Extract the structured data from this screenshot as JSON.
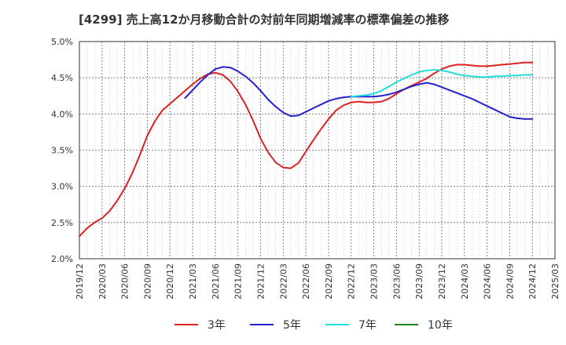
{
  "chart_data": {
    "type": "line",
    "title": "[4299]  売上高12か月移動合計の対前年同期増減率の標準偏差の推移",
    "xlabel": "",
    "ylabel": "",
    "ylim": [
      2.0,
      5.0
    ],
    "y_ticks": [
      "5.0%",
      "4.5%",
      "4.0%",
      "3.5%",
      "3.0%",
      "2.5%",
      "2.0%"
    ],
    "y_tick_values": [
      5.0,
      4.5,
      4.0,
      3.5,
      3.0,
      2.5,
      2.0
    ],
    "x_ticks": [
      "2019/12",
      "2020/03",
      "2020/06",
      "2020/09",
      "2020/12",
      "2021/03",
      "2021/06",
      "2021/09",
      "2021/12",
      "2022/03",
      "2022/06",
      "2022/09",
      "2022/12",
      "2023/03",
      "2023/06",
      "2023/09",
      "2023/12",
      "2024/03",
      "2024/06",
      "2024/09",
      "2024/12",
      "2025/03"
    ],
    "grid": true,
    "legend_position": "bottom",
    "series": [
      {
        "name": "3年",
        "color": "#dd2222",
        "x": [
          "2019/12",
          "2020/01",
          "2020/02",
          "2020/03",
          "2020/04",
          "2020/05",
          "2020/06",
          "2020/07",
          "2020/08",
          "2020/09",
          "2020/10",
          "2020/11",
          "2020/12",
          "2021/01",
          "2021/02",
          "2021/03",
          "2021/04",
          "2021/05",
          "2021/06",
          "2021/07",
          "2021/08",
          "2021/09",
          "2021/10",
          "2021/11",
          "2021/12",
          "2022/01",
          "2022/02",
          "2022/03",
          "2022/04",
          "2022/05",
          "2022/06",
          "2022/07",
          "2022/08",
          "2022/09",
          "2022/10",
          "2022/11",
          "2022/12",
          "2023/01",
          "2023/02",
          "2023/03",
          "2023/04",
          "2023/05",
          "2023/06",
          "2023/07",
          "2023/08",
          "2023/09",
          "2023/10",
          "2023/11",
          "2023/12",
          "2024/01",
          "2024/02",
          "2024/03",
          "2024/04",
          "2024/05",
          "2024/06",
          "2024/07",
          "2024/08",
          "2024/09",
          "2024/10",
          "2024/11",
          "2024/12"
        ],
        "values": [
          2.31,
          2.42,
          2.5,
          2.56,
          2.66,
          2.8,
          2.97,
          3.18,
          3.43,
          3.7,
          3.9,
          4.05,
          4.14,
          4.23,
          4.32,
          4.41,
          4.49,
          4.55,
          4.57,
          4.54,
          4.45,
          4.31,
          4.13,
          3.91,
          3.66,
          3.47,
          3.33,
          3.26,
          3.25,
          3.32,
          3.48,
          3.64,
          3.79,
          3.93,
          4.05,
          4.12,
          4.16,
          4.17,
          4.16,
          4.16,
          4.17,
          4.21,
          4.28,
          4.34,
          4.39,
          4.44,
          4.49,
          4.56,
          4.62,
          4.66,
          4.68,
          4.68,
          4.67,
          4.66,
          4.66,
          4.67,
          4.68,
          4.69,
          4.7,
          4.71,
          4.71
        ]
      },
      {
        "name": "5年",
        "color": "#2222cc",
        "x": [
          "2021/02",
          "2021/03",
          "2021/04",
          "2021/05",
          "2021/06",
          "2021/07",
          "2021/08",
          "2021/09",
          "2021/10",
          "2021/11",
          "2021/12",
          "2022/01",
          "2022/02",
          "2022/03",
          "2022/04",
          "2022/05",
          "2022/06",
          "2022/07",
          "2022/08",
          "2022/09",
          "2022/10",
          "2022/11",
          "2022/12",
          "2023/01",
          "2023/02",
          "2023/03",
          "2023/04",
          "2023/05",
          "2023/06",
          "2023/07",
          "2023/08",
          "2023/09",
          "2023/10",
          "2023/11",
          "2023/12",
          "2024/01",
          "2024/02",
          "2024/03",
          "2024/04",
          "2024/05",
          "2024/06",
          "2024/07",
          "2024/08",
          "2024/09",
          "2024/10",
          "2024/11",
          "2024/12"
        ],
        "values": [
          4.22,
          4.33,
          4.44,
          4.54,
          4.62,
          4.65,
          4.64,
          4.59,
          4.52,
          4.43,
          4.32,
          4.2,
          4.1,
          4.02,
          3.97,
          3.98,
          4.03,
          4.08,
          4.13,
          4.18,
          4.21,
          4.23,
          4.24,
          4.24,
          4.24,
          4.24,
          4.25,
          4.27,
          4.3,
          4.34,
          4.38,
          4.41,
          4.43,
          4.41,
          4.37,
          4.33,
          4.29,
          4.25,
          4.21,
          4.16,
          4.11,
          4.06,
          4.01,
          3.96,
          3.94,
          3.93,
          3.93
        ]
      },
      {
        "name": "7年",
        "color": "#22dddd",
        "x": [
          "2022/12",
          "2023/01",
          "2023/02",
          "2023/03",
          "2023/04",
          "2023/05",
          "2023/06",
          "2023/07",
          "2023/08",
          "2023/09",
          "2023/10",
          "2023/11",
          "2023/12",
          "2024/01",
          "2024/02",
          "2024/03",
          "2024/04",
          "2024/05",
          "2024/06",
          "2024/07",
          "2024/08",
          "2024/09",
          "2024/10",
          "2024/11",
          "2024/12"
        ],
        "values": [
          4.24,
          4.25,
          4.26,
          4.28,
          4.32,
          4.38,
          4.44,
          4.49,
          4.54,
          4.58,
          4.6,
          4.61,
          4.6,
          4.58,
          4.55,
          4.53,
          4.52,
          4.51,
          4.51,
          4.52,
          4.52,
          4.53,
          4.53,
          4.54,
          4.54
        ]
      },
      {
        "name": "10年",
        "color": "#228822",
        "x": [],
        "values": []
      }
    ]
  }
}
